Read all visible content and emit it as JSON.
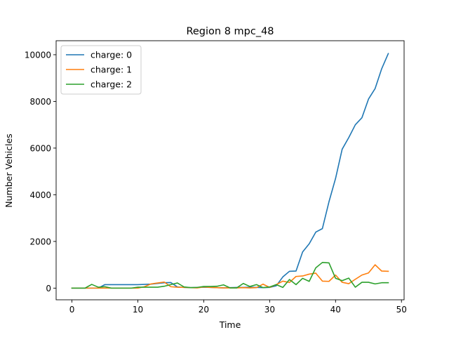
{
  "chart_data": {
    "type": "line",
    "title": "Region 8 mpc_48",
    "xlabel": "Time",
    "ylabel": "Number Vehicles",
    "xlim": [
      -2.4,
      50.4
    ],
    "ylim": [
      -500,
      10600
    ],
    "xticks": [
      0,
      10,
      20,
      30,
      40,
      50
    ],
    "yticks": [
      0,
      2000,
      4000,
      6000,
      8000,
      10000
    ],
    "grid": false,
    "legend_position": "upper-left",
    "x": [
      0,
      1,
      2,
      3,
      4,
      5,
      6,
      7,
      8,
      9,
      10,
      11,
      12,
      13,
      14,
      15,
      16,
      17,
      18,
      19,
      20,
      21,
      22,
      23,
      24,
      25,
      26,
      27,
      28,
      29,
      30,
      31,
      32,
      33,
      34,
      35,
      36,
      37,
      38,
      39,
      40,
      41,
      42,
      43,
      44,
      45,
      46,
      47,
      48
    ],
    "series": [
      {
        "name": "charge: 0",
        "color": "#1f77b4",
        "values": [
          0,
          0,
          0,
          0,
          0,
          150,
          150,
          150,
          150,
          150,
          150,
          160,
          170,
          200,
          230,
          240,
          50,
          30,
          20,
          30,
          40,
          30,
          20,
          10,
          20,
          30,
          30,
          40,
          30,
          20,
          30,
          100,
          480,
          720,
          730,
          1550,
          1900,
          2400,
          2550,
          3700,
          4700,
          5950,
          6450,
          7000,
          7300,
          8100,
          8550,
          9400,
          10050
        ]
      },
      {
        "name": "charge: 1",
        "color": "#ff7f0e",
        "values": [
          0,
          0,
          0,
          0,
          0,
          0,
          0,
          0,
          0,
          0,
          0,
          60,
          180,
          220,
          260,
          60,
          40,
          30,
          20,
          10,
          50,
          30,
          20,
          10,
          10,
          10,
          20,
          10,
          20,
          170,
          30,
          150,
          300,
          240,
          500,
          520,
          600,
          640,
          300,
          290,
          560,
          250,
          190,
          380,
          560,
          650,
          1000,
          730,
          720
        ]
      },
      {
        "name": "charge: 2",
        "color": "#2ca02c",
        "values": [
          0,
          0,
          0,
          160,
          40,
          60,
          0,
          0,
          0,
          0,
          40,
          40,
          40,
          40,
          80,
          150,
          220,
          50,
          20,
          30,
          70,
          70,
          80,
          140,
          10,
          10,
          200,
          70,
          150,
          20,
          50,
          150,
          30,
          370,
          150,
          420,
          290,
          870,
          1100,
          1080,
          420,
          320,
          430,
          40,
          250,
          250,
          180,
          230,
          230
        ]
      }
    ]
  }
}
